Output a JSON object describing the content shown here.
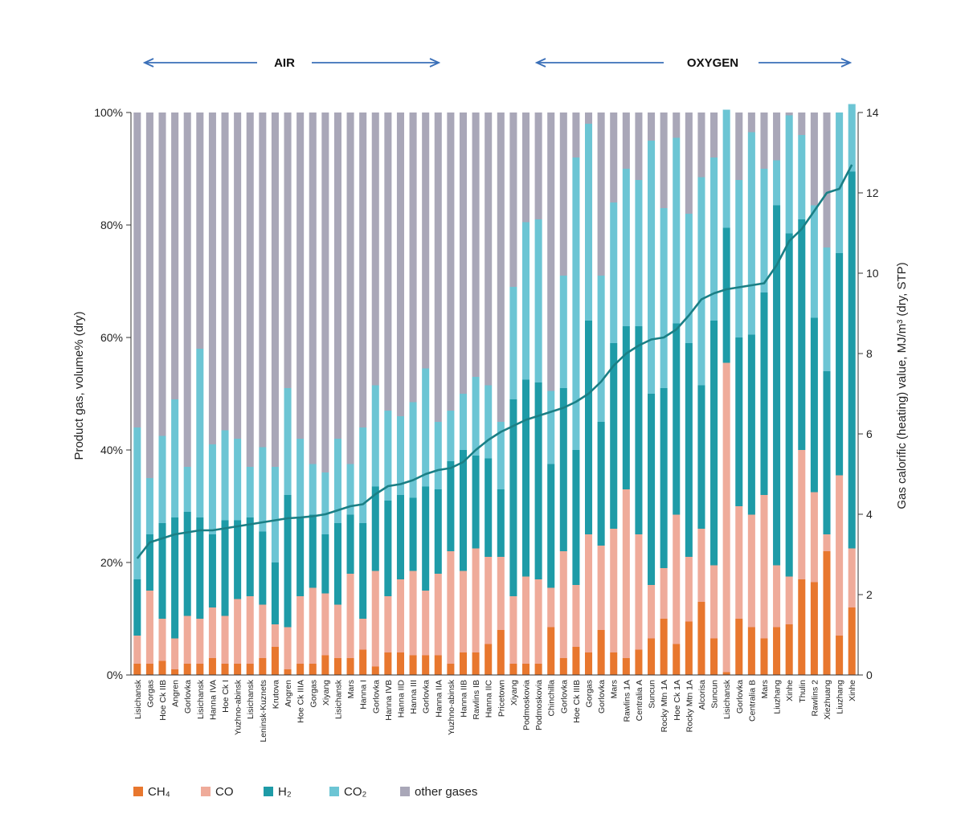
{
  "header": {
    "left_label": "AIR",
    "right_label": "OXYGEN"
  },
  "chart_data": {
    "type": "bar",
    "stacked": true,
    "ylabel": "Product gas, volume% (dry)",
    "y2label": "Gas calorific (heating) value, MJ/m³ (dry, STP)",
    "ylim": [
      0,
      100
    ],
    "y2lim": [
      0,
      14
    ],
    "y_ticks": [
      "0%",
      "20%",
      "40%",
      "60%",
      "80%",
      "100%"
    ],
    "y2_ticks": [
      "0",
      "2",
      "4",
      "6",
      "8",
      "10",
      "12",
      "14"
    ],
    "colors": {
      "CH4": "#e8772e",
      "CO": "#efab9a",
      "H2": "#1e9ba7",
      "CO2": "#6cc5d4",
      "other": "#a9a7b8",
      "line": "#1a7f85"
    },
    "legend": [
      "CH₄",
      "CO",
      "H₂",
      "CO₂",
      "other gases"
    ],
    "legend_position": "bottom",
    "categories": [
      "Lisichansk",
      "Gorgas",
      "Hoe Ck IIB",
      "Angren",
      "Gorlovka",
      "Lisichansk",
      "Hanna IVA",
      "Hoe Ck I",
      "Yuzhno-abinsk",
      "Lisichansk",
      "Leninsk-Kuznets",
      "Krutova",
      "Angren",
      "Hoe Ck IIIA",
      "Gorgas",
      "Xiyang",
      "Lisichansk",
      "Mars",
      "Hanna I",
      "Gorlovka",
      "Hanna IVB",
      "Hanna IID",
      "Hanna III",
      "Gorlovka",
      "Hanna IIA",
      "Yuzhno-abinsk",
      "Hanna IIB",
      "Rawlins IB",
      "Hanna IIC",
      "Pricetown",
      "Xiyang",
      "Podmoskovia",
      "Podmoskovia",
      "Chinchilla",
      "Gorlovka",
      "Hoe Ck IIIB",
      "Gorgas",
      "Gorlovka",
      "Mars",
      "Rawlins 1A",
      "Centralia A",
      "Suncun",
      "Rocky Mtn 1A",
      "Hoe Ck 1A",
      "Rocky Mtn 1A",
      "Alcorisa",
      "Suncun",
      "Lisichansk",
      "Gorlovka",
      "Centralia B",
      "Mars",
      "Liuzhang",
      "Xinhe",
      "Thulin",
      "Rawlins 2",
      "Xiezhuang",
      "Liuzhang",
      "Xinhe"
    ],
    "series": [
      {
        "name": "CH₄",
        "values": [
          2,
          2,
          2.5,
          1,
          2,
          2,
          3,
          2,
          2,
          2,
          3,
          5,
          1,
          2,
          2,
          3.5,
          3,
          3,
          4.5,
          1.5,
          4,
          4,
          3.5,
          3.5,
          3.5,
          2,
          4,
          4,
          5.5,
          8,
          2,
          2,
          2,
          8.5,
          3,
          5,
          4,
          8,
          4,
          3,
          4.5,
          6.5,
          10,
          5.5,
          9.5,
          13,
          6.5,
          0.5,
          10,
          8.5,
          6.5,
          8.5,
          9,
          17,
          16.5,
          22,
          7,
          12
        ]
      },
      {
        "name": "CO",
        "values": [
          5,
          13,
          7.5,
          5.5,
          8.5,
          8,
          9,
          8.5,
          11.5,
          12,
          9.5,
          4,
          7.5,
          12,
          13.5,
          11,
          9.5,
          15,
          5.5,
          17,
          10,
          13,
          15,
          11.5,
          14.5,
          20,
          14.5,
          18.5,
          15.5,
          13,
          12,
          15.5,
          15,
          7,
          19,
          11,
          21,
          15,
          22,
          30,
          20.5,
          9.5,
          9,
          23,
          11.5,
          13,
          13,
          55,
          20,
          20,
          25.5,
          11,
          8.5,
          23,
          16,
          3,
          28.5,
          10.5
        ]
      },
      {
        "name": "H₂",
        "values": [
          10,
          10,
          17,
          21.5,
          18.5,
          18,
          13,
          17,
          14,
          14,
          13,
          11,
          23.5,
          14,
          13,
          10.5,
          14.5,
          10.5,
          17,
          15,
          17,
          15,
          13,
          18.5,
          15,
          16,
          21.5,
          16.5,
          17.5,
          12,
          35,
          35,
          35,
          22,
          29,
          24,
          38,
          22,
          33,
          29,
          37,
          34,
          32,
          34,
          38,
          25.5,
          43.5,
          24,
          30,
          32,
          36,
          64,
          61,
          41,
          31,
          29,
          39.5,
          67
        ]
      },
      {
        "name": "CO₂",
        "values": [
          27,
          10,
          15.5,
          21,
          8,
          30,
          16,
          16,
          14.5,
          9,
          15,
          17,
          19,
          14,
          9,
          11,
          15,
          9,
          17,
          18,
          16,
          14,
          17,
          21,
          12,
          9,
          10,
          14,
          13,
          12,
          20,
          28,
          29,
          13,
          20,
          52,
          35,
          26,
          25,
          28,
          26,
          45,
          32,
          33,
          23,
          37,
          29,
          21,
          28,
          36,
          22,
          8,
          21,
          15,
          20,
          22,
          25,
          12
        ]
      },
      {
        "name": "other gases",
        "values": [
          56,
          65,
          57.5,
          51,
          63,
          42,
          59,
          56.5,
          58,
          63,
          59.5,
          63,
          49,
          58,
          62.5,
          64,
          58,
          62.5,
          56,
          48.5,
          53,
          54,
          51.5,
          45.5,
          55,
          53,
          50,
          47,
          48.5,
          55,
          31,
          19.5,
          19,
          49.5,
          29,
          8,
          2,
          29,
          16,
          10,
          12,
          5,
          17,
          4.5,
          18,
          11.5,
          8,
          0,
          12,
          3.5,
          10,
          8.5,
          0.5,
          4,
          16.5,
          24,
          0,
          0
        ]
      }
    ],
    "heating_value": [
      2.9,
      3.3,
      3.4,
      3.5,
      3.55,
      3.6,
      3.6,
      3.65,
      3.7,
      3.75,
      3.8,
      3.85,
      3.9,
      3.92,
      3.95,
      4.0,
      4.1,
      4.2,
      4.25,
      4.5,
      4.7,
      4.75,
      4.85,
      5.0,
      5.1,
      5.15,
      5.3,
      5.6,
      5.85,
      6.05,
      6.2,
      6.35,
      6.45,
      6.55,
      6.65,
      6.8,
      7.0,
      7.3,
      7.7,
      8.0,
      8.2,
      8.35,
      8.4,
      8.6,
      8.95,
      9.35,
      9.5,
      9.6,
      9.65,
      9.7,
      9.75,
      10.2,
      10.8,
      11.1,
      11.55,
      12.0,
      12.1,
      12.7
    ]
  }
}
